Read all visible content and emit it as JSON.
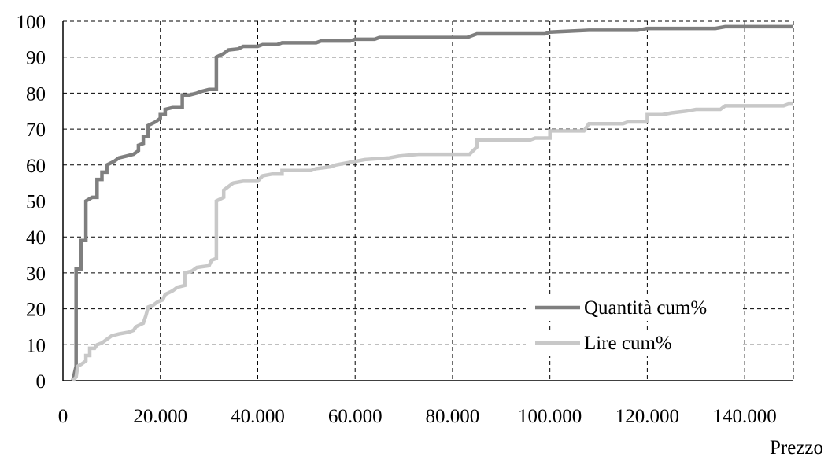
{
  "chart_data": {
    "type": "line",
    "xlabel": "Prezzo",
    "ylabel": "",
    "xlim": [
      0,
      150000
    ],
    "ylim": [
      0,
      100
    ],
    "x_ticks": [
      "0",
      "20.000",
      "40.000",
      "60.000",
      "80.000",
      "100.000",
      "120.000",
      "140.000"
    ],
    "x_tick_values": [
      0,
      20000,
      40000,
      60000,
      80000,
      100000,
      120000,
      140000
    ],
    "y_ticks": [
      "0",
      "10",
      "20",
      "30",
      "40",
      "50",
      "60",
      "70",
      "80",
      "90",
      "100"
    ],
    "y_tick_values": [
      0,
      10,
      20,
      30,
      40,
      50,
      60,
      70,
      80,
      90,
      100
    ],
    "grid": true,
    "legend_position": "bottom-right",
    "series": [
      {
        "name": "Quantità cum%",
        "color": "#7f7f7f",
        "points": [
          [
            2000,
            0
          ],
          [
            2700,
            4
          ],
          [
            2700,
            31
          ],
          [
            3700,
            31
          ],
          [
            3700,
            39
          ],
          [
            4700,
            39
          ],
          [
            4700,
            50
          ],
          [
            6000,
            51
          ],
          [
            7000,
            51
          ],
          [
            7000,
            56
          ],
          [
            8000,
            56
          ],
          [
            8000,
            58
          ],
          [
            9000,
            58
          ],
          [
            9000,
            60
          ],
          [
            10500,
            61
          ],
          [
            11500,
            62
          ],
          [
            13000,
            62.5
          ],
          [
            14500,
            63
          ],
          [
            15500,
            64
          ],
          [
            15500,
            65.5
          ],
          [
            16500,
            66
          ],
          [
            16500,
            68
          ],
          [
            17500,
            68
          ],
          [
            17500,
            71
          ],
          [
            19000,
            72
          ],
          [
            20000,
            73
          ],
          [
            20000,
            74
          ],
          [
            21000,
            74
          ],
          [
            21000,
            75.5
          ],
          [
            22500,
            76
          ],
          [
            24500,
            76
          ],
          [
            24500,
            79.5
          ],
          [
            26000,
            79.5
          ],
          [
            27500,
            80
          ],
          [
            28500,
            80.5
          ],
          [
            30000,
            81
          ],
          [
            31500,
            81
          ],
          [
            31500,
            90
          ],
          [
            33000,
            91
          ],
          [
            34000,
            92
          ],
          [
            36000,
            92.3
          ],
          [
            37000,
            93
          ],
          [
            40000,
            93
          ],
          [
            41000,
            93.5
          ],
          [
            44000,
            93.5
          ],
          [
            45000,
            94
          ],
          [
            52000,
            94
          ],
          [
            53000,
            94.5
          ],
          [
            59000,
            94.5
          ],
          [
            60000,
            95
          ],
          [
            64000,
            95
          ],
          [
            65000,
            95.5
          ],
          [
            83000,
            95.5
          ],
          [
            84000,
            96
          ],
          [
            85000,
            96.5
          ],
          [
            99000,
            96.5
          ],
          [
            100000,
            97
          ],
          [
            108000,
            97.5
          ],
          [
            118000,
            97.5
          ],
          [
            120000,
            98
          ],
          [
            134000,
            98
          ],
          [
            136000,
            98.5
          ],
          [
            150000,
            98.5
          ]
        ]
      },
      {
        "name": "Lire cum%",
        "color": "#c8c8c8",
        "points": [
          [
            2000,
            0
          ],
          [
            2700,
            1
          ],
          [
            3000,
            4
          ],
          [
            3700,
            4.5
          ],
          [
            4700,
            5.5
          ],
          [
            4700,
            7
          ],
          [
            5500,
            7
          ],
          [
            5500,
            9
          ],
          [
            6500,
            9
          ],
          [
            7000,
            10
          ],
          [
            8000,
            10.5
          ],
          [
            9000,
            11.5
          ],
          [
            10000,
            12.5
          ],
          [
            11500,
            13
          ],
          [
            13500,
            13.5
          ],
          [
            14500,
            14
          ],
          [
            15000,
            15
          ],
          [
            16500,
            16
          ],
          [
            17000,
            18
          ],
          [
            17500,
            20.5
          ],
          [
            18500,
            21
          ],
          [
            19500,
            22
          ],
          [
            20500,
            22.5
          ],
          [
            21000,
            24
          ],
          [
            22500,
            25
          ],
          [
            23500,
            26
          ],
          [
            25000,
            26.5
          ],
          [
            25000,
            30
          ],
          [
            26500,
            30.5
          ],
          [
            27500,
            31.5
          ],
          [
            30000,
            32
          ],
          [
            30500,
            33.5
          ],
          [
            31500,
            34
          ],
          [
            31500,
            50
          ],
          [
            33000,
            51
          ],
          [
            33000,
            53
          ],
          [
            34000,
            54
          ],
          [
            35000,
            55
          ],
          [
            37000,
            55.5
          ],
          [
            40000,
            55.5
          ],
          [
            41000,
            57
          ],
          [
            43000,
            57.5
          ],
          [
            45000,
            57.5
          ],
          [
            45000,
            58.5
          ],
          [
            51000,
            58.5
          ],
          [
            52000,
            59
          ],
          [
            55000,
            59.5
          ],
          [
            56000,
            60
          ],
          [
            58000,
            60.5
          ],
          [
            60000,
            61
          ],
          [
            62000,
            61.5
          ],
          [
            67000,
            62
          ],
          [
            69000,
            62.5
          ],
          [
            73000,
            63
          ],
          [
            83500,
            63
          ],
          [
            85000,
            65
          ],
          [
            85000,
            67
          ],
          [
            96000,
            67
          ],
          [
            97000,
            67.5
          ],
          [
            100000,
            67.5
          ],
          [
            100000,
            69.5
          ],
          [
            107000,
            69.5
          ],
          [
            108000,
            71.5
          ],
          [
            115000,
            71.5
          ],
          [
            116000,
            72
          ],
          [
            120000,
            72
          ],
          [
            120000,
            74
          ],
          [
            123000,
            74
          ],
          [
            125000,
            74.5
          ],
          [
            128000,
            75
          ],
          [
            130000,
            75.5
          ],
          [
            135000,
            75.5
          ],
          [
            136000,
            76.5
          ],
          [
            148000,
            76.5
          ],
          [
            149000,
            77
          ],
          [
            150000,
            77
          ]
        ]
      }
    ]
  }
}
